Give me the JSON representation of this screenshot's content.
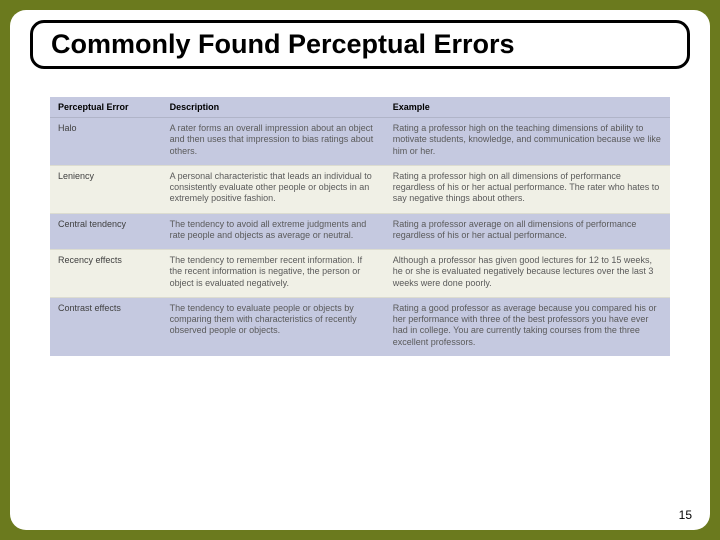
{
  "slide": {
    "title": "Commonly Found Perceptual Errors",
    "page_number": "15"
  },
  "table": {
    "headers": {
      "c0": "Perceptual Error",
      "c1": "Description",
      "c2": "Example"
    },
    "rows": [
      {
        "name": "Halo",
        "desc": "A rater forms an overall impression about an object and then uses that impression to bias ratings about others.",
        "example": "Rating a professor high on the teaching dimensions of ability to motivate students, knowledge, and communication because we like him or her."
      },
      {
        "name": "Leniency",
        "desc": "A personal characteristic that leads an individual to consistently evaluate other people or objects in an extremely positive fashion.",
        "example": "Rating a professor high on all dimensions of performance regardless of his or her actual performance. The rater who hates to say negative things about others."
      },
      {
        "name": "Central tendency",
        "desc": "The tendency to avoid all extreme judgments and rate people and objects as average or neutral.",
        "example": "Rating a professor average on all dimensions of performance regardless of his or her actual performance."
      },
      {
        "name": "Recency effects",
        "desc": "The tendency to remember recent information. If the recent information is negative, the person or object is evaluated negatively.",
        "example": "Although a professor has given good lectures for 12 to 15 weeks, he or she is evaluated negatively because lectures over the last 3 weeks were done poorly."
      },
      {
        "name": "Contrast effects",
        "desc": "The tendency to evaluate people or objects by comparing them with characteristics of recently observed people or objects.",
        "example": "Rating a good professor as average because you compared his or her performance with three of the best professors you have ever had in college. You are currently taking courses from the three excellent professors."
      }
    ]
  },
  "style": {
    "frame_bg": "#6b7a1e",
    "card_bg": "#ffffff",
    "header_bg": "#c5c9e0",
    "row_alt_bg": "#c5c9e0",
    "row_norm_bg": "#f0f0e6"
  }
}
